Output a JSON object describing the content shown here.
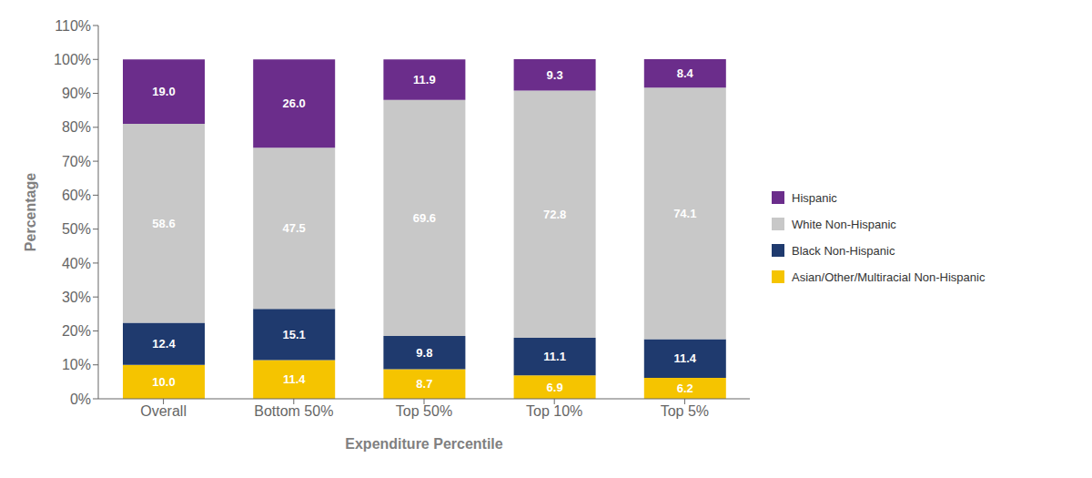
{
  "chart_data": {
    "type": "bar",
    "stacked": true,
    "data_labels": true,
    "grid": false,
    "legend": "right",
    "xlabel": "Expenditure Percentile",
    "ylabel": "Percentage",
    "categories": [
      "Overall",
      "Bottom 50%",
      "Top 50%",
      "Top 10%",
      "Top 5%"
    ],
    "series": [
      {
        "name": "Asian/Other/Multiracial Non-Hispanic",
        "color": "#F5C400",
        "values": [
          10.0,
          11.4,
          8.7,
          6.9,
          6.2
        ],
        "value_labels": [
          "10.0",
          "11.4",
          "8.7",
          "6.9",
          "6.2"
        ]
      },
      {
        "name": "Black Non-Hispanic",
        "color": "#1F3A6E",
        "values": [
          12.4,
          15.1,
          9.8,
          11.1,
          11.4
        ],
        "value_labels": [
          "12.4",
          "15.1",
          "9.8",
          "11.1",
          "11.4"
        ]
      },
      {
        "name": "White Non-Hispanic",
        "color": "#C8C8C8",
        "values": [
          58.6,
          47.5,
          69.6,
          72.8,
          74.1
        ],
        "value_labels": [
          "58.6",
          "47.5",
          "69.6",
          "72.8",
          "74.1"
        ]
      },
      {
        "name": "Hispanic",
        "color": "#6B2D8B",
        "values": [
          19.0,
          26.0,
          11.9,
          9.3,
          8.4
        ],
        "value_labels": [
          "19.0",
          "26.0",
          "11.9",
          "9.3",
          "8.4"
        ]
      }
    ],
    "ylim": [
      0,
      110
    ],
    "yticks": [
      {
        "value": 0,
        "label": "0%"
      },
      {
        "value": 10,
        "label": "10%"
      },
      {
        "value": 20,
        "label": "20%"
      },
      {
        "value": 30,
        "label": "30%"
      },
      {
        "value": 40,
        "label": "40%"
      },
      {
        "value": 50,
        "label": "50%"
      },
      {
        "value": 60,
        "label": "60%"
      },
      {
        "value": 70,
        "label": "70%"
      },
      {
        "value": 80,
        "label": "80%"
      },
      {
        "value": 90,
        "label": "90%"
      },
      {
        "value": 100,
        "label": "100%"
      },
      {
        "value": 110,
        "label": "110%"
      }
    ]
  }
}
